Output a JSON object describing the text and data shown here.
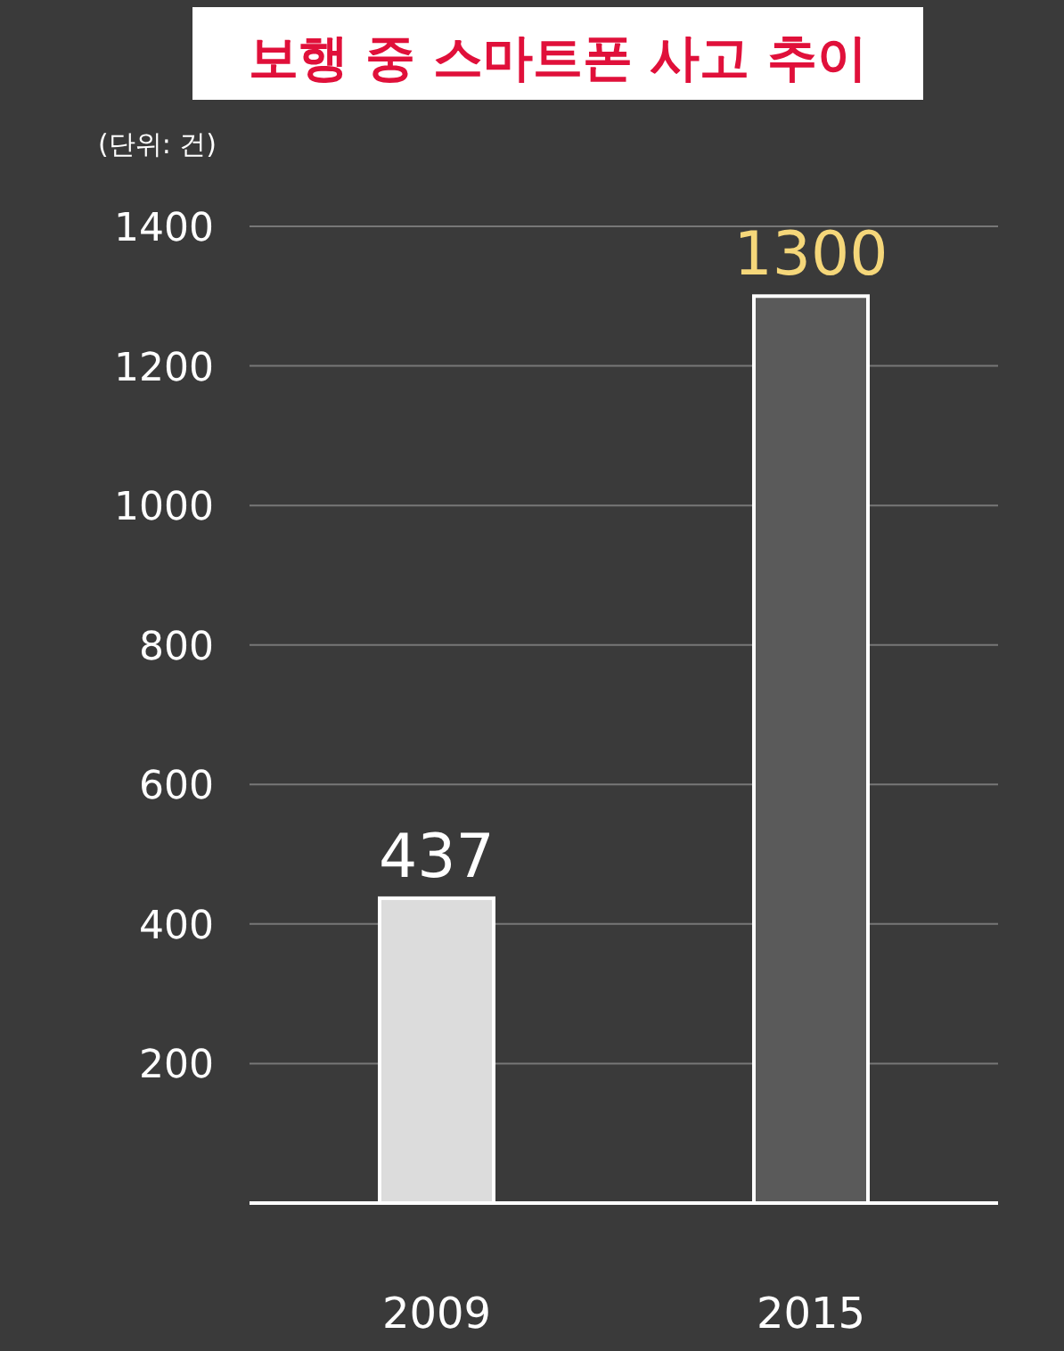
{
  "chart_data": {
    "type": "bar",
    "title": "보행 중 스마트폰 사고 추이",
    "annotations": [
      "(단위: 건)"
    ],
    "categories": [
      "2009",
      "2015"
    ],
    "values": [
      437,
      1300
    ],
    "colors": [
      "#dcdcdc",
      "#5a5a5a"
    ],
    "ylim": [
      0,
      1400
    ],
    "yticks": [
      200,
      400,
      600,
      800,
      1000,
      1200,
      1400
    ],
    "grid": "y",
    "data_labels": true
  }
}
